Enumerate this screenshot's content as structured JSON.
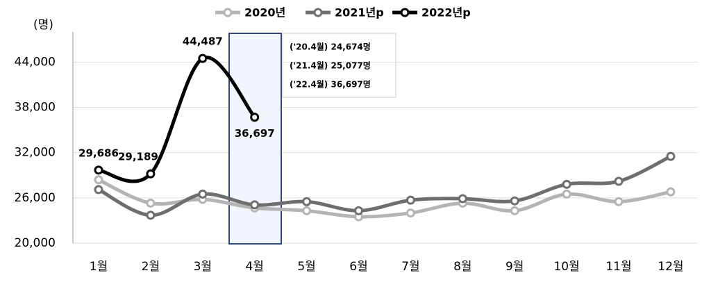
{
  "chart_data": {
    "type": "line",
    "y_unit": "(명)",
    "categories": [
      "1월",
      "2월",
      "3월",
      "4월",
      "5월",
      "6월",
      "7월",
      "8월",
      "9월",
      "10월",
      "11월",
      "12월"
    ],
    "series": [
      {
        "name": "2020년",
        "color": "#b4b4b4",
        "values": [
          28400,
          25300,
          25800,
          24674,
          24300,
          23500,
          24000,
          25300,
          24300,
          26500,
          25500,
          26800
        ]
      },
      {
        "name": "2021년p",
        "color": "#6e6e6e",
        "values": [
          27100,
          23700,
          26500,
          25077,
          25500,
          24300,
          25700,
          25900,
          25600,
          27800,
          28200,
          31500
        ]
      },
      {
        "name": "2022년p",
        "color": "#000000",
        "values": [
          29686,
          29189,
          44487,
          36697,
          null,
          null,
          null,
          null,
          null,
          null,
          null,
          null
        ],
        "value_labels": [
          "29,686",
          "29,189",
          "44,487",
          "36,697",
          null,
          null,
          null,
          null,
          null,
          null,
          null,
          null
        ]
      }
    ],
    "ylim": [
      20000,
      48000
    ],
    "yticks": [
      {
        "value": 20000,
        "label": "20,000"
      },
      {
        "value": 26000,
        "label": "26,000"
      },
      {
        "value": 32000,
        "label": "32,000"
      },
      {
        "value": 38000,
        "label": "38,000"
      },
      {
        "value": 44000,
        "label": "44,000"
      }
    ],
    "grid": true,
    "legend": "top",
    "annotations": [
      "('20.4월)  24,674명",
      "('21.4월)  25,077명",
      "('22.4월)  36,697명"
    ]
  }
}
